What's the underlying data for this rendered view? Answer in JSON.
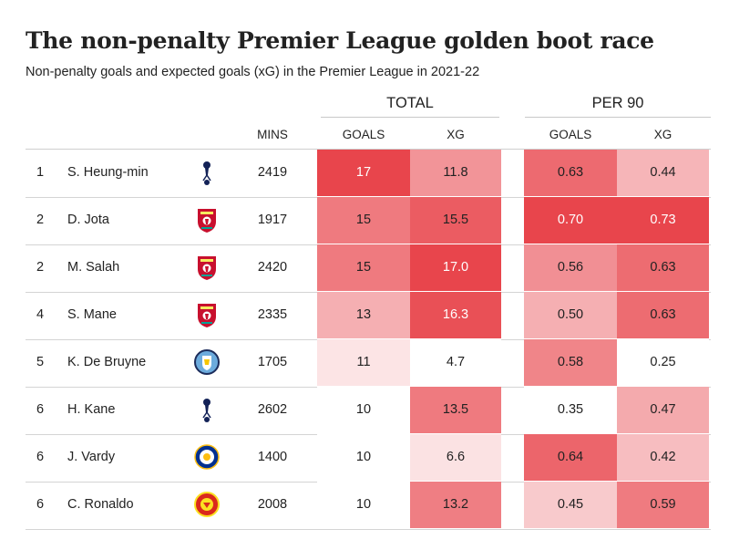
{
  "header": {
    "title": "The non-penalty Premier League golden boot race",
    "subtitle": "Non-penalty goals and expected goals (xG) in the Premier League in 2021-22"
  },
  "groups": {
    "total": "TOTAL",
    "per90": "PER 90"
  },
  "columns": {
    "mins": "MINS",
    "total_goals": "GOALS",
    "total_xg": "XG",
    "per90_goals": "GOALS",
    "per90_xg": "XG"
  },
  "colors": {
    "heat_high": "#e8454c",
    "heat_low": "#ffffff",
    "text_dark": "#222222",
    "text_light": "#ffffff"
  },
  "chart_data": {
    "type": "table",
    "title": "The non-penalty Premier League golden boot race",
    "subtitle": "Non-penalty goals and expected goals (xG) in the Premier League in 2021-22",
    "columns": [
      "",
      "",
      "",
      "MINS",
      "GOALS",
      "XG",
      "GOALS",
      "XG"
    ],
    "rows": [
      {
        "rank": "1",
        "player": "S. Heung-min",
        "club": "tottenham-crest-icon",
        "mins": "2419",
        "goals": "17",
        "xg": "11.8",
        "goals90": "0.63",
        "xg90": "0.44"
      },
      {
        "rank": "2",
        "player": "D. Jota",
        "club": "liverpool-crest-icon",
        "mins": "1917",
        "goals": "15",
        "xg": "15.5",
        "goals90": "0.70",
        "xg90": "0.73"
      },
      {
        "rank": "2",
        "player": "M. Salah",
        "club": "liverpool-crest-icon",
        "mins": "2420",
        "goals": "15",
        "xg": "17.0",
        "goals90": "0.56",
        "xg90": "0.63"
      },
      {
        "rank": "4",
        "player": "S. Mane",
        "club": "liverpool-crest-icon",
        "mins": "2335",
        "goals": "13",
        "xg": "16.3",
        "goals90": "0.50",
        "xg90": "0.63"
      },
      {
        "rank": "5",
        "player": "K. De Bruyne",
        "club": "man-city-crest-icon",
        "mins": "1705",
        "goals": "11",
        "xg": "4.7",
        "goals90": "0.58",
        "xg90": "0.25"
      },
      {
        "rank": "6",
        "player": "H. Kane",
        "club": "tottenham-crest-icon",
        "mins": "2602",
        "goals": "10",
        "xg": "13.5",
        "goals90": "0.35",
        "xg90": "0.47"
      },
      {
        "rank": "6",
        "player": "J. Vardy",
        "club": "leicester-crest-icon",
        "mins": "1400",
        "goals": "10",
        "xg": "6.6",
        "goals90": "0.64",
        "xg90": "0.42"
      },
      {
        "rank": "6",
        "player": "C. Ronaldo",
        "club": "man-utd-crest-icon",
        "mins": "2008",
        "goals": "10",
        "xg": "13.2",
        "goals90": "0.45",
        "xg90": "0.59"
      }
    ]
  }
}
